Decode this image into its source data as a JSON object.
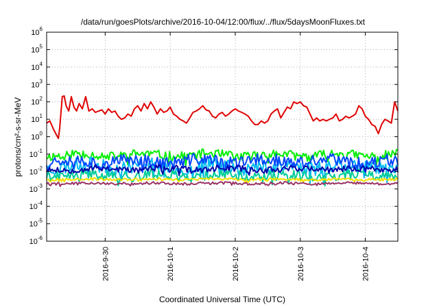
{
  "chart_data": {
    "type": "line",
    "title": "/data/run/goesPlots/archive/2016-10-04/12:00/flux/../flux/5daysMoonFluxes.txt",
    "xlabel": "Coordinated Universal Time (UTC)",
    "ylabel": "protons/cm²-s-sr-MeV",
    "yscale": "log",
    "ylim": [
      1e-06,
      1000000.0
    ],
    "xlim": [
      0,
      5.4
    ],
    "x_unit": "days from start of plotted window (left edge)",
    "grid": true,
    "legend": "none",
    "y_ticks": [
      {
        "value": 1e-06,
        "base": "10",
        "exp": "-6"
      },
      {
        "value": 1e-05,
        "base": "10",
        "exp": "-5"
      },
      {
        "value": 0.0001,
        "base": "10",
        "exp": "-4"
      },
      {
        "value": 0.001,
        "base": "10",
        "exp": "-3"
      },
      {
        "value": 0.01,
        "base": "10",
        "exp": "-2"
      },
      {
        "value": 0.1,
        "base": "10",
        "exp": "-1"
      },
      {
        "value": 1,
        "base": "10",
        "exp": "0"
      },
      {
        "value": 10,
        "base": "10",
        "exp": "1"
      },
      {
        "value": 100,
        "base": "10",
        "exp": "2"
      },
      {
        "value": 1000,
        "base": "10",
        "exp": "3"
      },
      {
        "value": 10000,
        "base": "10",
        "exp": "4"
      },
      {
        "value": 100000,
        "base": "10",
        "exp": "5"
      },
      {
        "value": 1000000,
        "base": "10",
        "exp": "6"
      }
    ],
    "x_ticks": [
      {
        "value": 0.9,
        "label": "2016-9-30"
      },
      {
        "value": 1.9,
        "label": "2016-10-1"
      },
      {
        "value": 2.9,
        "label": "2016-10-2"
      },
      {
        "value": 3.9,
        "label": "2016-10-3"
      },
      {
        "value": 4.9,
        "label": "2016-10-4"
      }
    ],
    "series": [
      {
        "color": "#e00000",
        "style": "smooth",
        "x": [
          0,
          0.05,
          0.1,
          0.14,
          0.18,
          0.2,
          0.24,
          0.27,
          0.3,
          0.34,
          0.38,
          0.42,
          0.46,
          0.5,
          0.55,
          0.6,
          0.65,
          0.7,
          0.75,
          0.8,
          0.85,
          0.9,
          0.95,
          1.0,
          1.05,
          1.1,
          1.15,
          1.2,
          1.25,
          1.3,
          1.35,
          1.4,
          1.45,
          1.5,
          1.55,
          1.6,
          1.65,
          1.7,
          1.75,
          1.8,
          1.85,
          1.9,
          1.95,
          2.0,
          2.05,
          2.1,
          2.15,
          2.2,
          2.25,
          2.3,
          2.35,
          2.4,
          2.45,
          2.5,
          2.55,
          2.6,
          2.65,
          2.7,
          2.75,
          2.8,
          2.85,
          2.9,
          2.95,
          3.0,
          3.05,
          3.1,
          3.15,
          3.2,
          3.25,
          3.3,
          3.35,
          3.4,
          3.45,
          3.5,
          3.55,
          3.6,
          3.65,
          3.7,
          3.75,
          3.8,
          3.85,
          3.9,
          3.95,
          4.0,
          4.05,
          4.1,
          4.15,
          4.2,
          4.25,
          4.3,
          4.35,
          4.4,
          4.45,
          4.5,
          4.55,
          4.6,
          4.65,
          4.7,
          4.75,
          4.8,
          4.85,
          4.9,
          4.95,
          5.0,
          5.05,
          5.1,
          5.15,
          5.2,
          5.25,
          5.3,
          5.35,
          5.4
        ],
        "y": [
          6,
          8,
          3,
          1.5,
          0.8,
          3,
          200,
          220,
          60,
          30,
          200,
          50,
          30,
          80,
          40,
          200,
          30,
          40,
          25,
          30,
          35,
          20,
          40,
          25,
          30,
          15,
          10,
          12,
          20,
          15,
          40,
          60,
          30,
          80,
          40,
          100,
          50,
          20,
          40,
          25,
          30,
          50,
          20,
          15,
          10,
          8,
          6,
          12,
          25,
          30,
          40,
          60,
          35,
          30,
          15,
          12,
          20,
          25,
          15,
          20,
          30,
          40,
          30,
          25,
          20,
          15,
          8,
          5,
          5,
          8,
          6,
          8,
          20,
          30,
          40,
          12,
          25,
          50,
          40,
          100,
          80,
          100,
          60,
          50,
          20,
          8,
          12,
          8,
          10,
          8,
          10,
          12,
          20,
          8,
          10,
          15,
          12,
          15,
          20,
          60,
          40,
          15,
          10,
          5,
          4,
          1.5,
          5,
          10,
          8,
          6,
          100,
          30
        ]
      },
      {
        "color": "#00ee00",
        "style": "noisy",
        "base": 0.09,
        "amp": 0.65,
        "seed": 11
      },
      {
        "color": "#00bbee",
        "style": "noisy",
        "base": 0.02,
        "amp": 1.0,
        "seed": 23
      },
      {
        "color": "#0044ff",
        "style": "noisy",
        "base": 0.04,
        "amp": 0.85,
        "seed": 37
      },
      {
        "color": "#00cc99",
        "style": "noisy",
        "base": 0.006,
        "amp": 0.7,
        "seed": 41
      },
      {
        "color": "#0000aa",
        "style": "noisy",
        "base": 0.014,
        "amp": 0.45,
        "seed": 53
      },
      {
        "color": "#f0e000",
        "style": "noisy",
        "base": 0.0036,
        "amp": 0.18,
        "seed": 67
      },
      {
        "color": "#993366",
        "style": "noisy",
        "base": 0.0021,
        "amp": 0.18,
        "seed": 79
      }
    ]
  }
}
